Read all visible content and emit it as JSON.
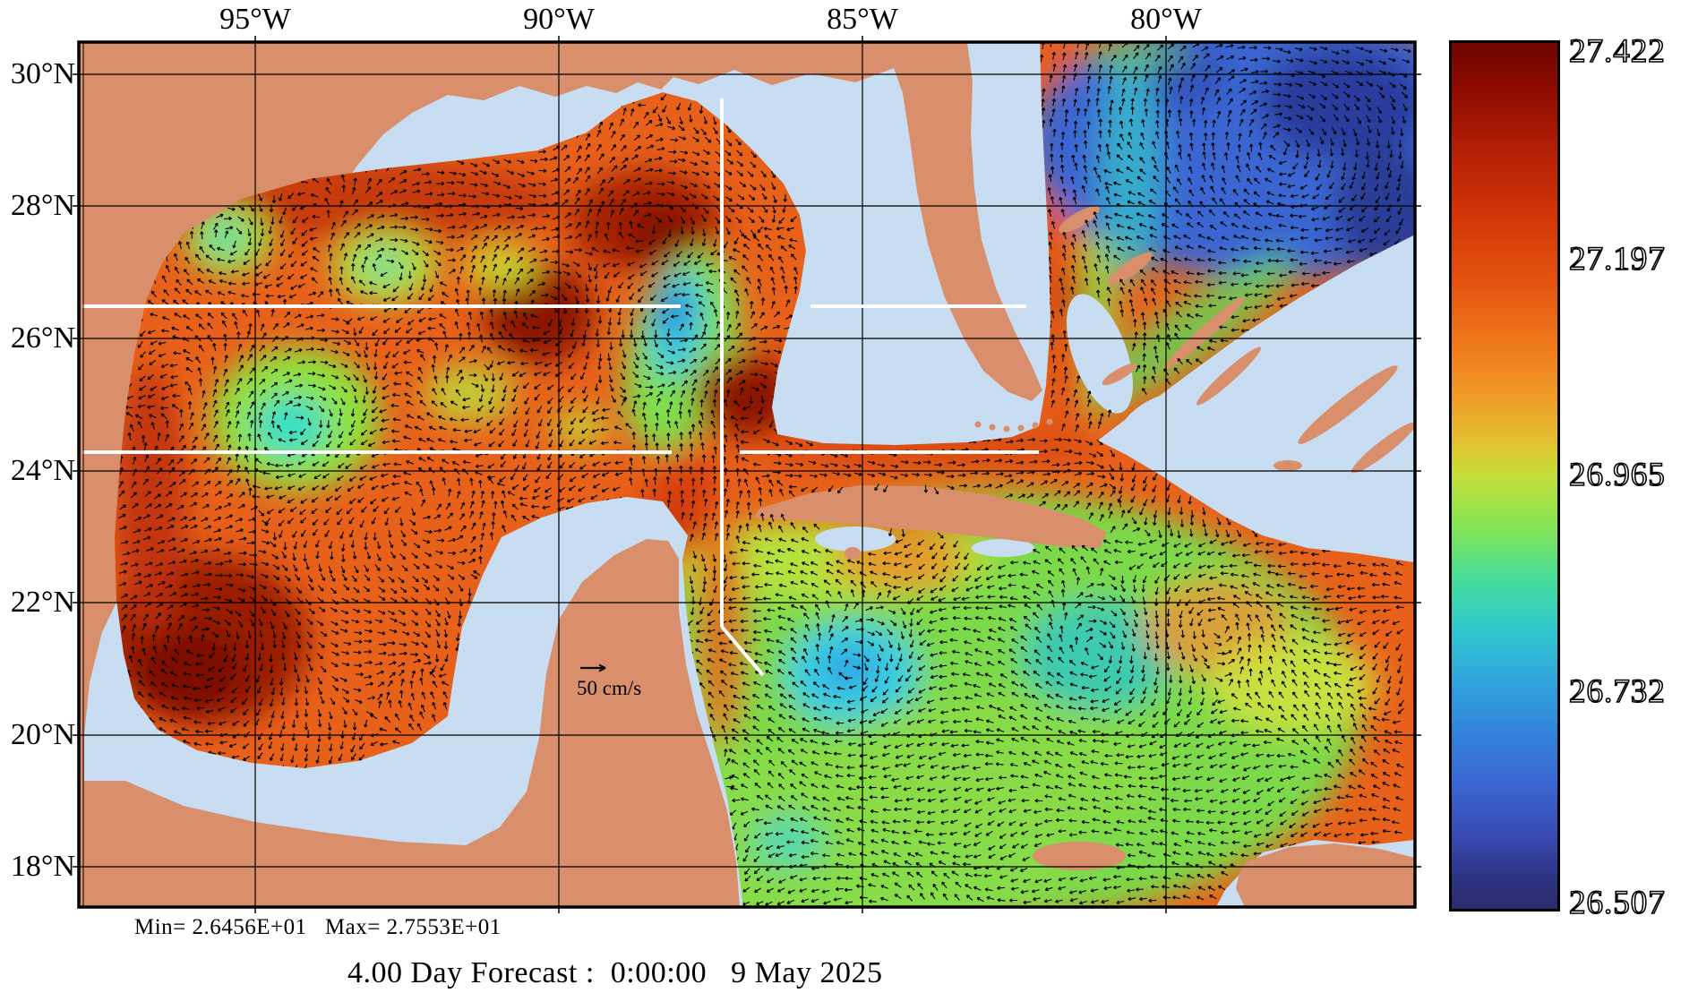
{
  "title": "4.00 Day Forecast :  0:00:00   9 May 2025",
  "stats": "Min= 2.6456E+01   Max= 2.7553E+01",
  "scale_label": "50 cm/s",
  "axes": {
    "lon": [
      "95°W",
      "90°W",
      "85°W",
      "80°W"
    ],
    "lat": [
      "30°N",
      "28°N",
      "26°N",
      "24°N",
      "22°N",
      "20°N",
      "18°N"
    ]
  },
  "colorbar": {
    "ticks": [
      "27.422",
      "27.197",
      "26.965",
      "26.732",
      "26.507"
    ]
  },
  "colors": {
    "land": "#D98F6C",
    "water": "#C8DDF1",
    "field_base": "#E8611B",
    "arrow": "#000000",
    "grid": "#000000",
    "frame": "#000000",
    "white_line": "#FFFFFF",
    "colorbar_stops": [
      [
        "0%",
        "#6E0502"
      ],
      [
        "5%",
        "#8C0B02"
      ],
      [
        "12%",
        "#B21D04"
      ],
      [
        "20%",
        "#D23607"
      ],
      [
        "28%",
        "#E55511"
      ],
      [
        "35%",
        "#EF7A1C"
      ],
      [
        "41%",
        "#F09C28"
      ],
      [
        "46%",
        "#E3C030"
      ],
      [
        "50%",
        "#C4DF38"
      ],
      [
        "56%",
        "#84E455"
      ],
      [
        "62%",
        "#45DC9C"
      ],
      [
        "68%",
        "#30C6CF"
      ],
      [
        "74%",
        "#2FA3DC"
      ],
      [
        "80%",
        "#3381DC"
      ],
      [
        "86%",
        "#3A64D0"
      ],
      [
        "92%",
        "#3948B0"
      ],
      [
        "96%",
        "#2F3585"
      ],
      [
        "100%",
        "#2A2B6B"
      ]
    ]
  },
  "chart_data": {
    "type": "heatmap",
    "title": "4.00 Day Forecast :  0:00:00   9 May 2025",
    "x_ticks": [
      "95°W",
      "90°W",
      "85°W",
      "80°W"
    ],
    "y_ticks": [
      "30°N",
      "28°N",
      "26°N",
      "24°N",
      "22°N",
      "20°N",
      "18°N"
    ],
    "xlim": [
      "98°W",
      "76°W"
    ],
    "ylim": [
      "17.4°N",
      "30.5°N"
    ],
    "colorbar_tick_values": [
      27.422,
      27.197,
      26.965,
      26.732,
      26.507
    ],
    "colorbar_range": [
      26.507,
      27.422
    ],
    "field_min": 26.456,
    "field_max": 27.553,
    "min_label": "Min= 2.6456E+01",
    "max_label": "Max= 2.7553E+01",
    "overlay": "current velocity vector field",
    "vector_reference": "50 cm/s",
    "grid": true,
    "legend_position": "right-colorbar"
  }
}
